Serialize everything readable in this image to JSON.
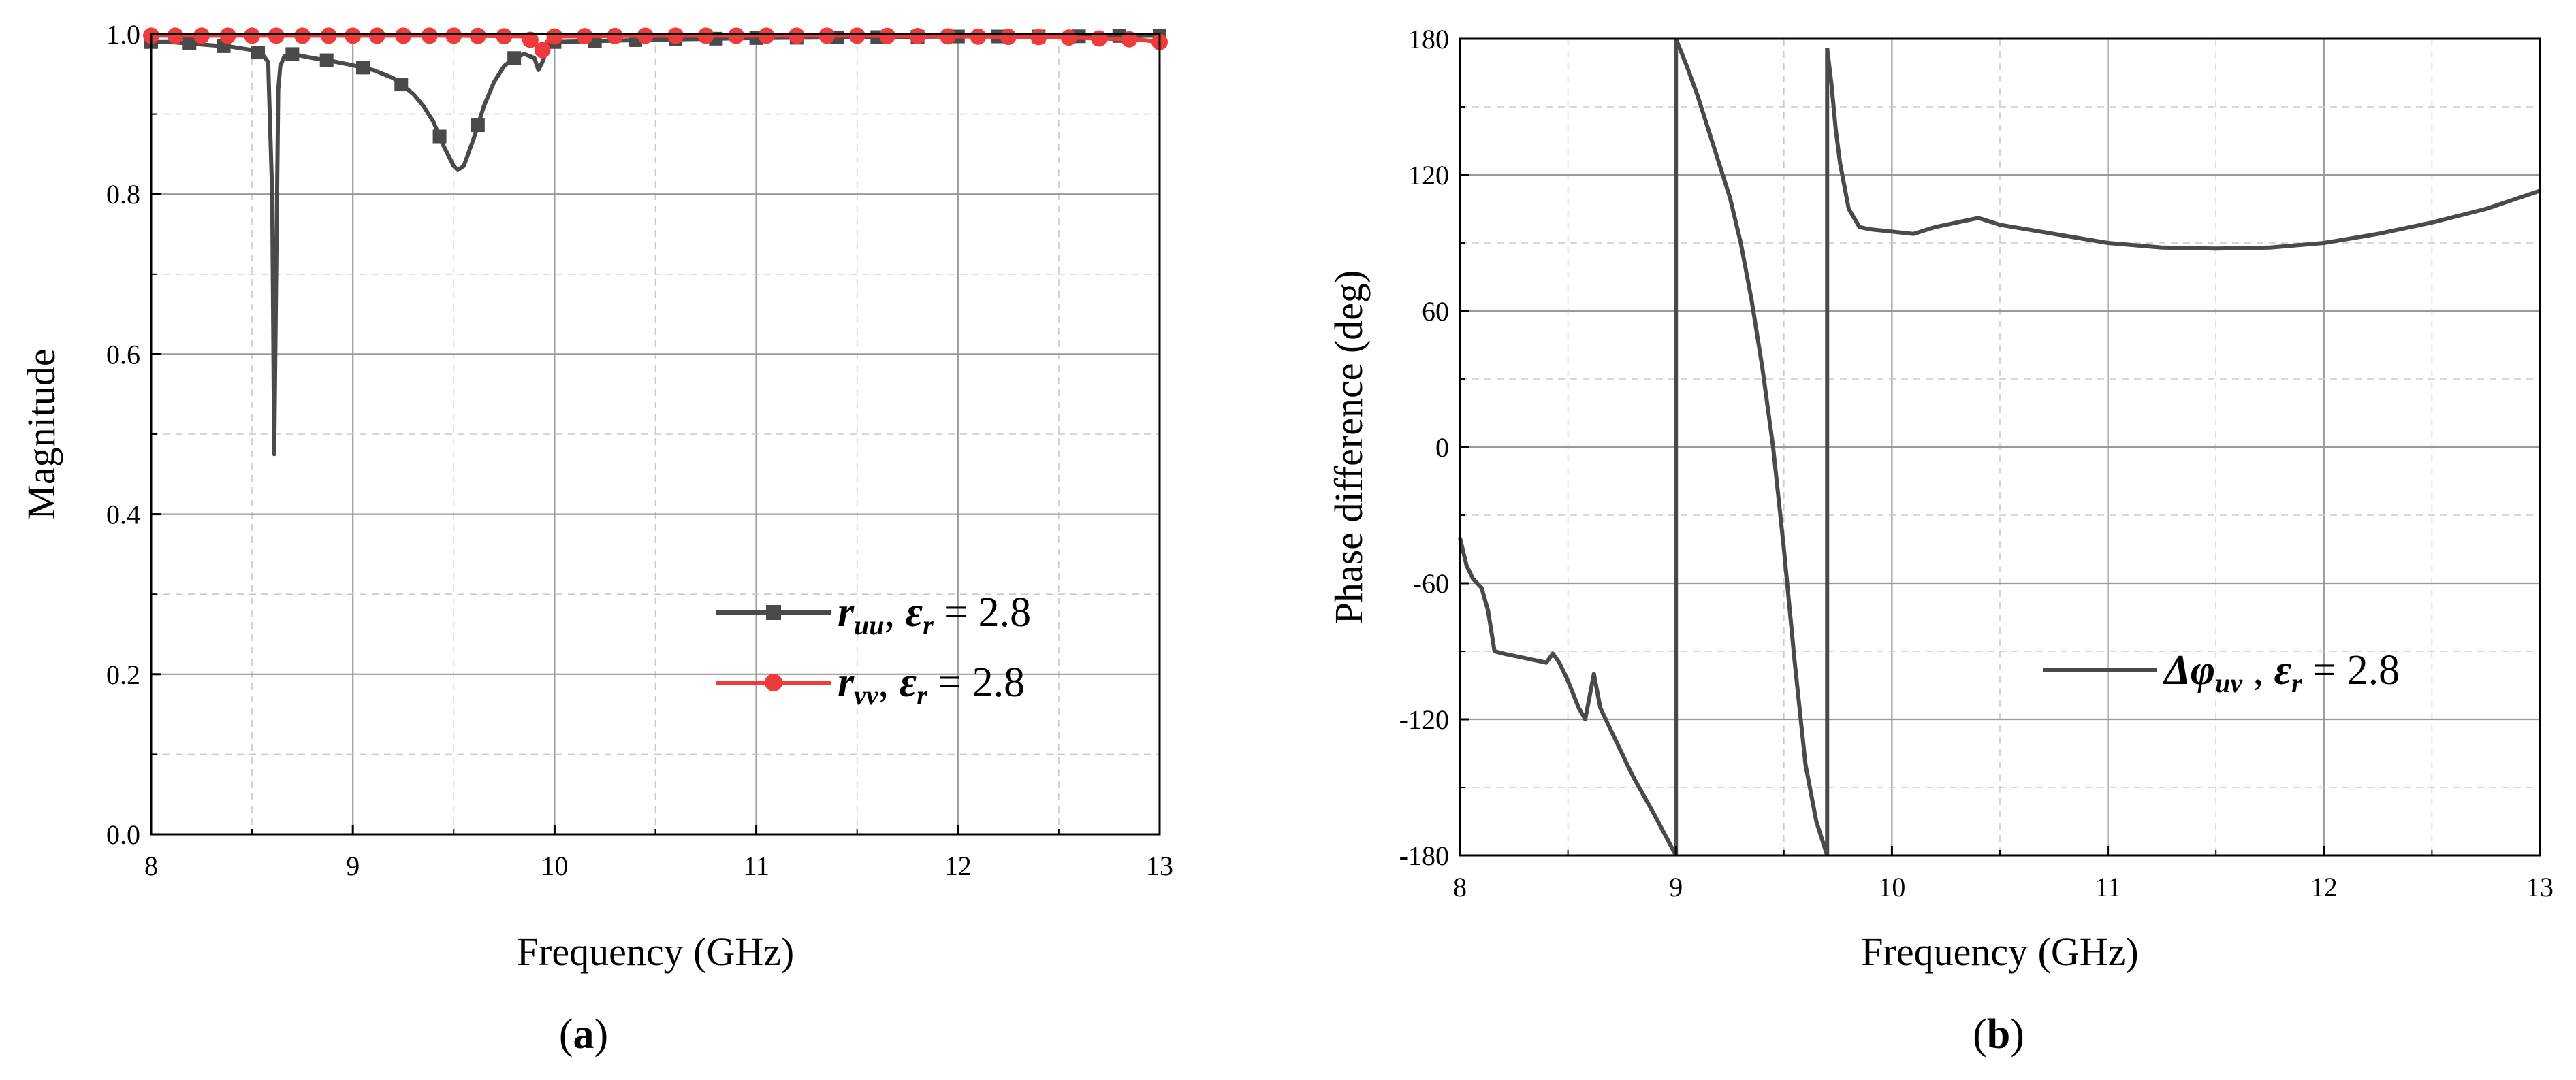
{
  "chart_data": [
    {
      "type": "line",
      "panel_label": "a",
      "xlabel": "Frequency (GHz)",
      "ylabel": "Magnitude",
      "xlim": [
        8,
        13
      ],
      "ylim": [
        0.0,
        1.0
      ],
      "xticks": [
        "8",
        "9",
        "10",
        "11",
        "12",
        "13"
      ],
      "yticks": [
        "0.0",
        "0.2",
        "0.4",
        "0.6",
        "0.8",
        "1.0"
      ],
      "grid": true,
      "legend_position": "bottom-right",
      "series": [
        {
          "name_main": "r",
          "name_sub": "uu",
          "name_rest": ", ",
          "name_eps": "ε",
          "name_eps_sub": "r",
          "name_value": " = 2.8",
          "color": "#4a4a4a",
          "marker": "square",
          "x": [
            8.0,
            8.1,
            8.2,
            8.3,
            8.4,
            8.5,
            8.55,
            8.58,
            8.6,
            8.61,
            8.62,
            8.63,
            8.64,
            8.66,
            8.7,
            8.8,
            8.9,
            9.0,
            9.1,
            9.2,
            9.3,
            9.35,
            9.4,
            9.45,
            9.5,
            9.52,
            9.55,
            9.6,
            9.65,
            9.7,
            9.75,
            9.8,
            9.85,
            9.9,
            9.92,
            9.94,
            9.96,
            10.0,
            10.5,
            11.0,
            11.5,
            12.0,
            12.5,
            13.0
          ],
          "y": [
            0.99,
            0.99,
            0.988,
            0.986,
            0.984,
            0.98,
            0.975,
            0.965,
            0.8,
            0.475,
            0.7,
            0.93,
            0.96,
            0.972,
            0.975,
            0.97,
            0.966,
            0.961,
            0.955,
            0.945,
            0.925,
            0.91,
            0.89,
            0.86,
            0.835,
            0.83,
            0.835,
            0.87,
            0.91,
            0.94,
            0.96,
            0.97,
            0.975,
            0.97,
            0.955,
            0.965,
            0.98,
            0.99,
            0.993,
            0.995,
            0.996,
            0.997,
            0.997,
            0.998
          ],
          "marker_x": [
            8.0,
            8.19,
            8.36,
            8.53,
            8.7,
            8.87,
            9.05,
            9.24,
            9.43,
            9.62,
            9.8,
            10.0,
            10.2,
            10.4,
            10.6,
            10.8,
            11.0,
            11.2,
            11.4,
            11.6,
            11.8,
            12.0,
            12.2,
            12.4,
            12.6,
            12.8,
            13.0
          ]
        },
        {
          "name_main": "r",
          "name_sub": "vv",
          "name_rest": ",  ",
          "name_eps": "ε",
          "name_eps_sub": "r",
          "name_value": " = 2.8",
          "color": "#ee3b3b",
          "marker": "circle",
          "x": [
            8.0,
            8.5,
            9.0,
            9.5,
            9.85,
            9.9,
            9.93,
            9.96,
            10.0,
            10.5,
            11.0,
            11.5,
            12.0,
            12.5,
            12.9,
            13.0
          ],
          "y": [
            0.998,
            0.998,
            0.998,
            0.998,
            0.997,
            0.99,
            0.975,
            0.99,
            0.997,
            0.998,
            0.998,
            0.998,
            0.997,
            0.996,
            0.993,
            0.99
          ],
          "marker_x": [
            8.0,
            8.12,
            8.25,
            8.38,
            8.5,
            8.62,
            8.75,
            8.88,
            9.0,
            9.12,
            9.25,
            9.38,
            9.5,
            9.62,
            9.75,
            9.88,
            9.94,
            10.0,
            10.15,
            10.3,
            10.45,
            10.6,
            10.75,
            10.9,
            11.05,
            11.2,
            11.35,
            11.5,
            11.65,
            11.8,
            11.95,
            12.1,
            12.25,
            12.4,
            12.55,
            12.7,
            12.85,
            13.0
          ]
        }
      ]
    },
    {
      "type": "line",
      "panel_label": "b",
      "xlabel": "Frequency (GHz)",
      "ylabel": "Phase difference (deg)",
      "xlim": [
        8,
        13
      ],
      "ylim": [
        -180,
        180
      ],
      "xticks": [
        "8",
        "9",
        "10",
        "11",
        "12",
        "13"
      ],
      "yticks": [
        "-180",
        "-120",
        "-60",
        "0",
        "60",
        "120",
        "180"
      ],
      "grid": true,
      "legend_position": "bottom-right",
      "series": [
        {
          "name_main": "Δφ",
          "name_sub": "uv",
          "name_rest": " , ",
          "name_eps": "ε",
          "name_eps_sub": "r",
          "name_value": " = 2.8",
          "color": "#4a4a4a",
          "marker": "none",
          "segments": [
            {
              "x": [
                8.0,
                8.03,
                8.06,
                8.1,
                8.13,
                8.16,
                8.2,
                8.3,
                8.4,
                8.43,
                8.46,
                8.5,
                8.55,
                8.58,
                8.6,
                8.62,
                8.65,
                8.7,
                8.8,
                8.9,
                9.0
              ],
              "y": [
                -40,
                -52,
                -58,
                -62,
                -72,
                -90,
                -91,
                -93,
                -95,
                -91,
                -95,
                -103,
                -115,
                -120,
                -110,
                -100,
                -115,
                -125,
                -145,
                -162,
                -180
              ]
            },
            {
              "x": [
                9.0,
                9.05,
                9.1,
                9.15,
                9.2,
                9.25,
                9.3,
                9.35,
                9.4,
                9.45,
                9.5,
                9.55,
                9.6,
                9.65,
                9.7
              ],
              "y": [
                180,
                168,
                155,
                140,
                125,
                110,
                90,
                65,
                35,
                0,
                -45,
                -95,
                -140,
                -165,
                -180
              ]
            },
            {
              "x": [
                9.7,
                9.72,
                9.74,
                9.76,
                9.8,
                9.85,
                9.9,
                10.0,
                10.1,
                10.2,
                10.3,
                10.4,
                10.5,
                10.75,
                11.0,
                11.25,
                11.5,
                11.75,
                12.0,
                12.25,
                12.5,
                12.75,
                13.0
              ],
              "y": [
                176,
                160,
                140,
                125,
                105,
                97,
                96,
                95,
                94,
                97,
                99,
                101,
                98,
                94,
                90,
                88,
                87.5,
                88,
                90,
                94,
                99,
                105,
                113
              ]
            }
          ]
        }
      ]
    }
  ]
}
